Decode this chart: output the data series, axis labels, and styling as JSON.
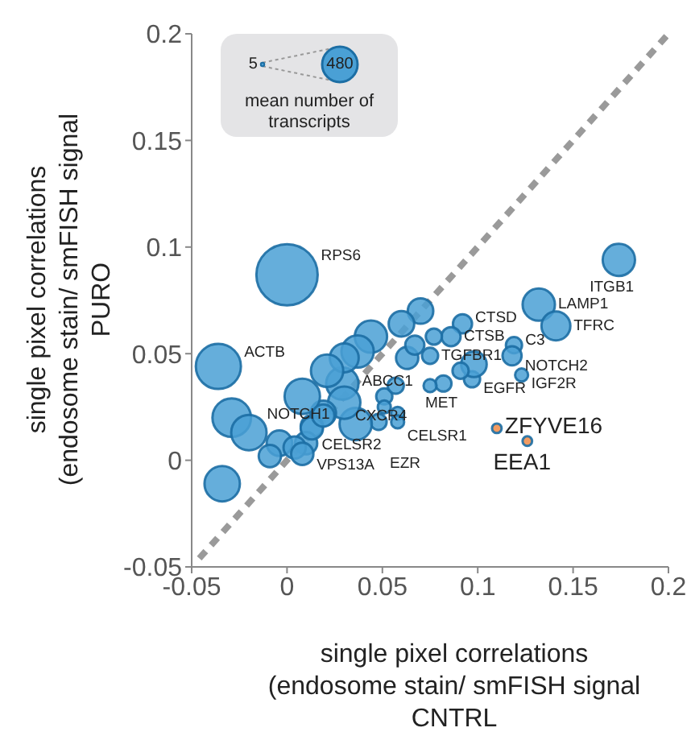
{
  "chart_data": {
    "type": "bubble",
    "xlabel": "single pixel correlations\n(endosome stain/ smFISH signal\nCNTRL",
    "ylabel": "single pixel correlations\n(endosome stain/ smFISH signal\nPURO",
    "legend_title": "mean number of transcripts",
    "size_legend": [
      5,
      480
    ],
    "xlim": [
      -0.05,
      0.2
    ],
    "xticks": [
      -0.05,
      0,
      0.05,
      0.1,
      0.15,
      0.2
    ],
    "ylim": [
      -0.05,
      0.2
    ],
    "yticks": [
      -0.05,
      0,
      0.05,
      0.1,
      0.15,
      0.2
    ],
    "grid": false,
    "legend": false,
    "series": [
      {
        "type": "bubble",
        "color": "#4aa0d5",
        "x": [
          0.174,
          0.132,
          0.141,
          0.092,
          0.086,
          0.077,
          0.119,
          0.118,
          0.123,
          0.097,
          0.098,
          0.091,
          0.075,
          0.082,
          0.075,
          0.07,
          0.06,
          0.044,
          0.037,
          0.063,
          0.067,
          0.051,
          0.057,
          0.051,
          0.058,
          0.058,
          0.048,
          0.036,
          0.029,
          0.03,
          0.019,
          0.013,
          0.01,
          0.0,
          -0.036,
          -0.029,
          -0.02,
          -0.034,
          0.008,
          -0.004,
          -0.009,
          0.004,
          0.013,
          0.019,
          0.03,
          0.021,
          0.008
        ],
        "values": [
          0.094,
          0.073,
          0.063,
          0.064,
          0.058,
          0.058,
          0.054,
          0.049,
          0.04,
          0.038,
          0.045,
          0.042,
          0.049,
          0.036,
          0.035,
          0.07,
          0.064,
          0.058,
          0.051,
          0.048,
          0.054,
          0.03,
          0.035,
          0.025,
          0.022,
          0.018,
          0.018,
          0.017,
          0.036,
          0.027,
          0.022,
          0.016,
          0.008,
          0.087,
          0.044,
          0.02,
          0.013,
          -0.011,
          0.03,
          0.008,
          0.002,
          0.006,
          0.015,
          0.021,
          0.048,
          0.042,
          0.003
        ],
        "sizes": [
          400,
          400,
          320,
          140,
          140,
          100,
          100,
          140,
          65,
          100,
          250,
          100,
          100,
          100,
          65,
          250,
          250,
          400,
          400,
          190,
          140,
          100,
          100,
          65,
          65,
          65,
          100,
          400,
          400,
          400,
          250,
          190,
          190,
          1440,
          780,
          570,
          480,
          480,
          480,
          250,
          190,
          190,
          190,
          190,
          320,
          400,
          190
        ]
      },
      {
        "type": "bubble",
        "color": "#f08a45",
        "x": [
          0.11,
          0.126
        ],
        "values": [
          0.015,
          0.009
        ],
        "sizes": [
          35,
          35
        ]
      },
      {
        "type": "line",
        "color": "#9a9a9a",
        "line_style": "dashed",
        "x": [
          -0.046,
          0.2
        ],
        "values": [
          -0.046,
          0.2
        ]
      }
    ],
    "annotations": [
      {
        "text": "RPS6",
        "x": 0.0,
        "y": 0.087
      },
      {
        "text": "ITGB1",
        "x": 0.174,
        "y": 0.094
      },
      {
        "text": "ACTB",
        "x": -0.036,
        "y": 0.044
      },
      {
        "text": "LAMP1",
        "x": 0.132,
        "y": 0.073
      },
      {
        "text": "CTSD",
        "x": 0.092,
        "y": 0.064
      },
      {
        "text": "TFRC",
        "x": 0.141,
        "y": 0.063
      },
      {
        "text": "CTSB",
        "x": 0.086,
        "y": 0.058
      },
      {
        "text": "C3",
        "x": 0.119,
        "y": 0.054
      },
      {
        "text": "NOTCH2",
        "x": 0.118,
        "y": 0.049
      },
      {
        "text": "IGF2R",
        "x": 0.123,
        "y": 0.04
      },
      {
        "text": "EGFR",
        "x": 0.097,
        "y": 0.038
      },
      {
        "text": "MET",
        "x": 0.082,
        "y": 0.036
      },
      {
        "text": "TGFBR1",
        "x": 0.075,
        "y": 0.049
      },
      {
        "text": "ABCC1",
        "x": 0.075,
        "y": 0.035
      },
      {
        "text": "CXCR4",
        "x": 0.051,
        "y": 0.03
      },
      {
        "text": "CELSR1",
        "x": 0.058,
        "y": 0.022
      },
      {
        "text": "CELSR2",
        "x": 0.058,
        "y": 0.018
      },
      {
        "text": "NOTCH1",
        "x": 0.036,
        "y": 0.017
      },
      {
        "text": "EZR",
        "x": 0.048,
        "y": 0.018
      },
      {
        "text": "VPS13A",
        "x": 0.008,
        "y": 0.003
      },
      {
        "text": "ZFYVE16",
        "x": 0.11,
        "y": 0.015
      },
      {
        "text": "EEA1",
        "x": 0.126,
        "y": 0.009
      }
    ]
  }
}
